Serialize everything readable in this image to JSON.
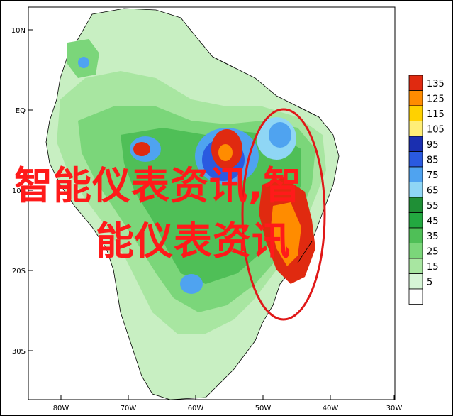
{
  "map": {
    "lat_labels": [
      "10N",
      "EQ",
      "10S",
      "20S",
      "30S"
    ],
    "lon_labels": [
      "80W",
      "70W",
      "60W",
      "50W",
      "40W",
      "30W"
    ],
    "colors": {
      "land": "#ffffff",
      "level5": "#d6f5d6",
      "level15": "#a8e6a1",
      "level25": "#7bd67a",
      "level35": "#4fbf57",
      "level45": "#23a840",
      "level55": "#1f8f36",
      "level65": "#8fd6f5",
      "level75": "#4fa3f0",
      "level85": "#2a5ae0",
      "level95": "#1a2fb0",
      "level105": "#ffee77",
      "level115": "#ffd100",
      "level125": "#ff8c00",
      "level135": "#e02a10",
      "highlight_circle": "#e01818"
    }
  },
  "legend": {
    "levels": [
      "135",
      "125",
      "115",
      "105",
      "95",
      "85",
      "75",
      "65",
      "55",
      "45",
      "35",
      "25",
      "15",
      "5"
    ],
    "swatch_colors": [
      "#e02a10",
      "#ff8c00",
      "#ffd100",
      "#ffee77",
      "#1a2fb0",
      "#2a5ae0",
      "#4fa3f0",
      "#8fd6f5",
      "#1f8f36",
      "#23a840",
      "#4fbf57",
      "#7bd67a",
      "#a8e6a1",
      "#d6f5d6"
    ]
  },
  "overlay": {
    "line1": "智能仪表资讯,智",
    "line2": "能仪表资讯"
  }
}
